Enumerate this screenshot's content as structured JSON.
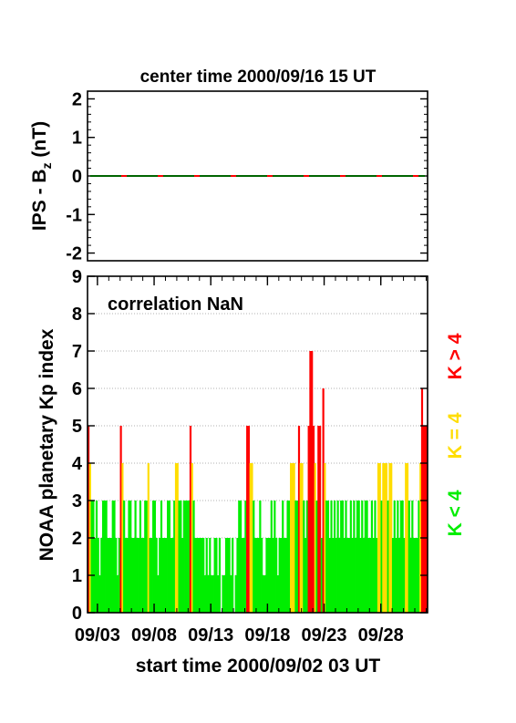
{
  "chart_data": [
    {
      "type": "line",
      "title": "center time 2000/09/16 15 UT",
      "ylabel": "IPS - B",
      "ylabel_sub": "z",
      "ylabel_unit": " (nT)",
      "ylim": [
        -2.2,
        2.2
      ],
      "yticks": [
        2,
        1,
        0,
        -1,
        -2
      ],
      "ytick_labels": [
        "2",
        "1",
        "0",
        "-1",
        "-2"
      ],
      "series_colors": [
        "#006400",
        "#ff0000"
      ],
      "value": 0
    },
    {
      "type": "bar",
      "annotation": "correlation NaN",
      "ylabel": "NOAA planetary Kp index",
      "xlabel": "start time 2000/09/02 03 UT",
      "ylim": [
        0,
        9
      ],
      "yticks": [
        0,
        1,
        2,
        3,
        4,
        5,
        6,
        7,
        8,
        9
      ],
      "ytick_labels": [
        "0",
        "1",
        "2",
        "3",
        "4",
        "5",
        "6",
        "7",
        "8",
        "9"
      ],
      "xlim_days": [
        0,
        30
      ],
      "x_unit": "days after 2000/09/02 03 UT",
      "xticks_days": [
        0.875,
        5.875,
        10.875,
        15.875,
        20.875,
        25.875
      ],
      "xtick_labels": [
        "09/03",
        "09/08",
        "09/13",
        "09/18",
        "09/23",
        "09/28"
      ],
      "grid": true,
      "colors": {
        "low": "#00ee00",
        "mid": "#ffdd00",
        "high": "#ff0000"
      },
      "legend": [
        {
          "label": "K < 4",
          "color": "#00ee00"
        },
        {
          "label": "K = 4",
          "color": "#ffdd00"
        },
        {
          "label": "K > 4",
          "color": "#ff0000"
        }
      ],
      "kp": [
        5,
        4,
        3,
        3,
        2,
        3,
        2,
        1,
        2,
        3,
        3,
        3,
        2,
        2,
        2,
        3,
        3,
        2,
        1,
        2,
        5,
        4,
        3,
        2,
        2,
        3,
        3,
        2,
        2,
        3,
        2,
        2,
        3,
        2,
        2,
        3,
        3,
        4,
        2,
        2,
        3,
        3,
        2,
        1,
        2,
        3,
        2,
        2,
        2,
        3,
        3,
        2,
        2,
        3,
        4,
        4,
        3,
        3,
        2,
        3,
        3,
        3,
        3,
        5,
        4,
        3,
        2,
        2,
        2,
        2,
        2,
        2,
        1,
        2,
        1,
        2,
        1,
        1,
        2,
        2,
        1,
        2,
        0,
        1,
        1,
        2,
        2,
        2,
        1,
        2,
        0,
        1,
        2,
        3,
        3,
        2,
        2,
        3,
        5,
        5,
        4,
        4,
        3,
        2,
        2,
        2,
        3,
        2,
        1,
        1,
        2,
        2,
        2,
        3,
        2,
        3,
        2,
        1,
        2,
        2,
        3,
        2,
        2,
        3,
        3,
        4,
        4,
        4,
        3,
        3,
        5,
        4,
        4,
        3,
        2,
        3,
        5,
        7,
        7,
        5,
        4,
        3,
        5,
        5,
        2,
        6,
        4,
        3,
        3,
        2,
        3,
        2,
        3,
        2,
        3,
        2,
        3,
        3,
        2,
        3,
        2,
        2,
        3,
        2,
        3,
        2,
        3,
        3,
        2,
        3,
        2,
        3,
        3,
        2,
        2,
        3,
        2,
        3,
        2,
        4,
        4,
        3,
        4,
        4,
        4,
        3,
        4,
        4,
        2,
        3,
        2,
        3,
        2,
        3,
        3,
        2,
        4,
        4,
        3,
        2,
        3,
        2,
        2,
        2,
        3,
        4,
        6,
        5,
        5,
        5
      ]
    }
  ]
}
